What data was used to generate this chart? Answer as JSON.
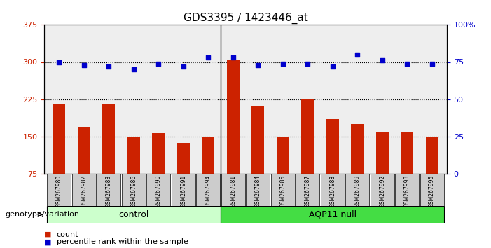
{
  "title": "GDS3395 / 1423446_at",
  "samples": [
    "GSM267980",
    "GSM267982",
    "GSM267983",
    "GSM267986",
    "GSM267990",
    "GSM267991",
    "GSM267994",
    "GSM267981",
    "GSM267984",
    "GSM267985",
    "GSM267987",
    "GSM267988",
    "GSM267989",
    "GSM267992",
    "GSM267993",
    "GSM267995"
  ],
  "counts": [
    215,
    170,
    215,
    148,
    157,
    137,
    150,
    305,
    210,
    148,
    225,
    185,
    175,
    160,
    158,
    150
  ],
  "percentiles": [
    75,
    73,
    72,
    70,
    74,
    72,
    78,
    78,
    73,
    74,
    74,
    72,
    80,
    76,
    74,
    74
  ],
  "left_ylim": [
    75,
    375
  ],
  "left_yticks": [
    75,
    150,
    225,
    300,
    375
  ],
  "right_ylim": [
    0,
    100
  ],
  "right_yticks": [
    0,
    25,
    50,
    75,
    100
  ],
  "right_yticklabels": [
    "0",
    "25",
    "50",
    "75",
    "100%"
  ],
  "bar_color": "#cc2200",
  "dot_color": "#0000cc",
  "groups": [
    {
      "label": "control",
      "start": 0,
      "end": 7,
      "color": "#ccffcc"
    },
    {
      "label": "AQP11 null",
      "start": 7,
      "end": 16,
      "color": "#44dd44"
    }
  ],
  "group_label": "genotype/variation",
  "legend_count_label": "count",
  "legend_pct_label": "percentile rank within the sample",
  "bg_color": "#ffffff",
  "plot_bg_color": "#eeeeee",
  "gridline_color": "#000000",
  "tick_label_bg": "#cccccc"
}
